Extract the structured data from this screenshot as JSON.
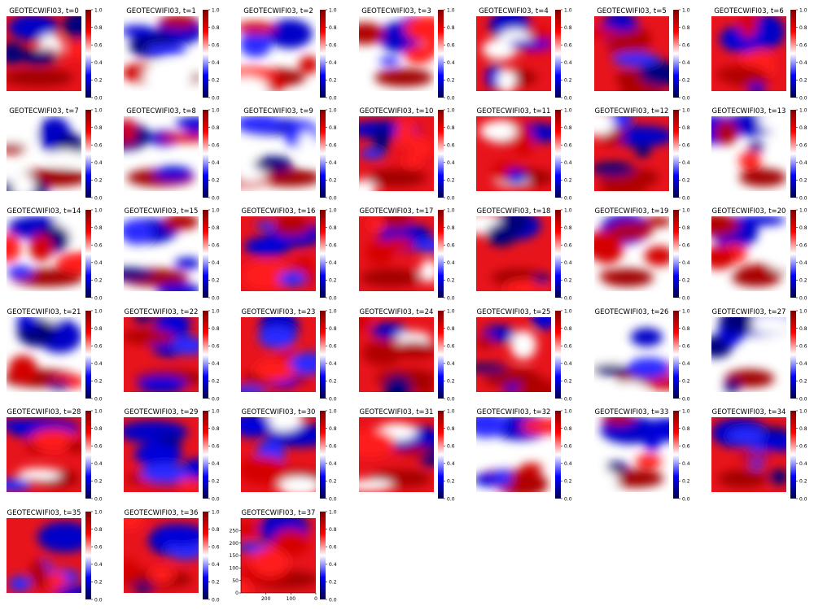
{
  "figure": {
    "panel_prefix": "GEOTECWIFI03, t="
  },
  "chart_data": {
    "type": "heatmap",
    "layout": {
      "rows": 6,
      "cols": 7
    },
    "colormap": "seismic",
    "colormap_stops": [
      "#00004c",
      "#0000ff",
      "#ffffff",
      "#ff0000",
      "#800000"
    ],
    "value_range": [
      0,
      1
    ],
    "colorbar_ticks": [
      "0.0",
      "0.2",
      "0.4",
      "0.6",
      "0.8",
      "1.0"
    ],
    "frames": [
      {
        "t": 0,
        "title": "GEOTECWIFI03, t=0"
      },
      {
        "t": 1,
        "title": "GEOTECWIFI03, t=1"
      },
      {
        "t": 2,
        "title": "GEOTECWIFI03, t=2"
      },
      {
        "t": 3,
        "title": "GEOTECWIFI03, t=3"
      },
      {
        "t": 4,
        "title": "GEOTECWIFI03, t=4"
      },
      {
        "t": 5,
        "title": "GEOTECWIFI03, t=5"
      },
      {
        "t": 6,
        "title": "GEOTECWIFI03, t=6"
      },
      {
        "t": 7,
        "title": "GEOTECWIFI03, t=7"
      },
      {
        "t": 8,
        "title": "GEOTECWIFI03, t=8"
      },
      {
        "t": 9,
        "title": "GEOTECWIFI03, t=9"
      },
      {
        "t": 10,
        "title": "GEOTECWIFI03, t=10"
      },
      {
        "t": 11,
        "title": "GEOTECWIFI03, t=11"
      },
      {
        "t": 12,
        "title": "GEOTECWIFI03, t=12"
      },
      {
        "t": 13,
        "title": "GEOTECWIFI03, t=13"
      },
      {
        "t": 14,
        "title": "GEOTECWIFI03, t=14"
      },
      {
        "t": 15,
        "title": "GEOTECWIFI03, t=15"
      },
      {
        "t": 16,
        "title": "GEOTECWIFI03, t=16"
      },
      {
        "t": 17,
        "title": "GEOTECWIFI03, t=17"
      },
      {
        "t": 18,
        "title": "GEOTECWIFI03, t=18"
      },
      {
        "t": 19,
        "title": "GEOTECWIFI03, t=19"
      },
      {
        "t": 20,
        "title": "GEOTECWIFI03, t=20"
      },
      {
        "t": 21,
        "title": "GEOTECWIFI03, t=21"
      },
      {
        "t": 22,
        "title": "GEOTECWIFI03, t=22"
      },
      {
        "t": 23,
        "title": "GEOTECWIFI03, t=23"
      },
      {
        "t": 24,
        "title": "GEOTECWIFI03, t=24"
      },
      {
        "t": 25,
        "title": "GEOTECWIFI03, t=25"
      },
      {
        "t": 26,
        "title": "GEOTECWIFI03, t=26"
      },
      {
        "t": 27,
        "title": "GEOTECWIFI03, t=27"
      },
      {
        "t": 28,
        "title": "GEOTECWIFI03, t=28"
      },
      {
        "t": 29,
        "title": "GEOTECWIFI03, t=29"
      },
      {
        "t": 30,
        "title": "GEOTECWIFI03, t=30"
      },
      {
        "t": 31,
        "title": "GEOTECWIFI03, t=31"
      },
      {
        "t": 32,
        "title": "GEOTECWIFI03, t=32"
      },
      {
        "t": 33,
        "title": "GEOTECWIFI03, t=33"
      },
      {
        "t": 34,
        "title": "GEOTECWIFI03, t=34"
      },
      {
        "t": 35,
        "title": "GEOTECWIFI03, t=35"
      },
      {
        "t": 36,
        "title": "GEOTECWIFI03, t=36"
      },
      {
        "t": 37,
        "title": "GEOTECWIFI03, t=37"
      }
    ],
    "last_panel_axes": {
      "frame_index": 37,
      "x_ticks": [
        {
          "value": 200,
          "label": "200"
        },
        {
          "value": 100,
          "label": "100"
        },
        {
          "value": 0,
          "label": "0"
        }
      ],
      "x_range": [
        300,
        0
      ],
      "y_ticks": [
        {
          "value": 0,
          "label": "0"
        },
        {
          "value": 50,
          "label": "50"
        },
        {
          "value": 100,
          "label": "100"
        },
        {
          "value": 150,
          "label": "150"
        },
        {
          "value": 200,
          "label": "200"
        },
        {
          "value": 250,
          "label": "250"
        }
      ],
      "y_range": [
        0,
        300
      ]
    }
  }
}
